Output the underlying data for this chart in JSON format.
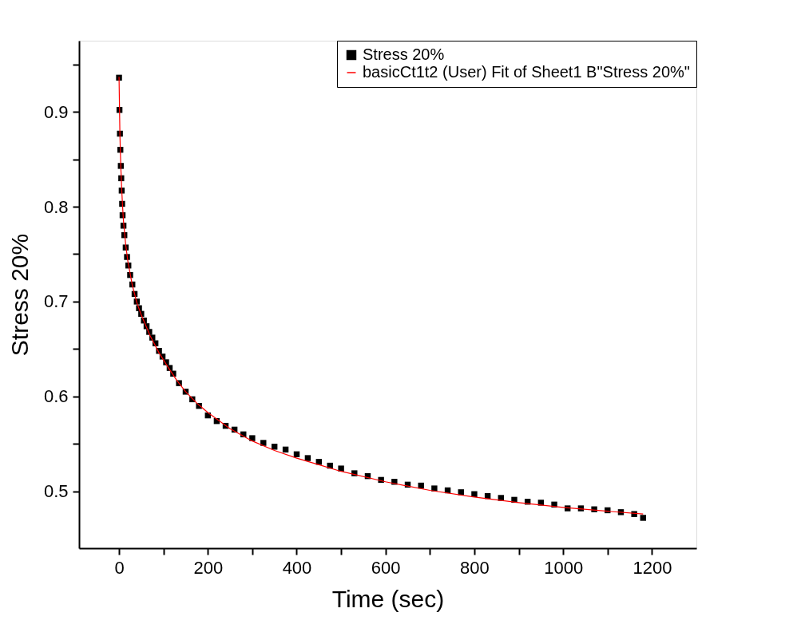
{
  "chart_data": {
    "type": "scatter",
    "xlabel": "Time (sec)",
    "ylabel": "Stress 20%",
    "xlim": [
      -90,
      1300
    ],
    "ylim": [
      0.44,
      0.975
    ],
    "xticks": [
      0,
      {
        "value": 100,
        "label": null
      },
      200,
      {
        "value": 300,
        "label": null
      },
      400,
      {
        "value": 500,
        "label": null
      },
      600,
      {
        "value": 700,
        "label": null
      },
      800,
      {
        "value": 900,
        "label": null
      },
      1000,
      {
        "value": 1100,
        "label": null
      },
      1200
    ],
    "yticks": [
      0.5,
      {
        "value": 0.55,
        "label": null
      },
      0.6,
      {
        "value": 0.65,
        "label": null
      },
      0.7,
      {
        "value": 0.75,
        "label": null
      },
      0.8,
      {
        "value": 0.85,
        "label": null
      },
      0.9,
      {
        "value": 0.95,
        "label": null
      }
    ],
    "grid": false,
    "legend": "top right",
    "series": [
      {
        "name": "Stress 20%",
        "color": "#000000",
        "marker": "square",
        "x": [
          0,
          1,
          2,
          3,
          4,
          5,
          6,
          7,
          8,
          10,
          12,
          15,
          18,
          21,
          25,
          30,
          35,
          40,
          45,
          50,
          56,
          62,
          68,
          75,
          82,
          90,
          98,
          106,
          114,
          122,
          135,
          150,
          165,
          180,
          200,
          220,
          240,
          260,
          280,
          300,
          325,
          350,
          375,
          400,
          425,
          450,
          475,
          500,
          530,
          560,
          590,
          620,
          650,
          680,
          710,
          740,
          770,
          800,
          830,
          860,
          890,
          920,
          950,
          980,
          1010,
          1040,
          1070,
          1100,
          1130,
          1160,
          1180
        ],
        "values": [
          0.936,
          0.902,
          0.877,
          0.86,
          0.843,
          0.83,
          0.817,
          0.803,
          0.791,
          0.78,
          0.77,
          0.757,
          0.747,
          0.738,
          0.728,
          0.718,
          0.708,
          0.7,
          0.693,
          0.687,
          0.68,
          0.674,
          0.668,
          0.662,
          0.656,
          0.648,
          0.642,
          0.636,
          0.63,
          0.624,
          0.614,
          0.605,
          0.597,
          0.59,
          0.58,
          0.574,
          0.569,
          0.565,
          0.56,
          0.556,
          0.551,
          0.547,
          0.544,
          0.539,
          0.535,
          0.531,
          0.527,
          0.524,
          0.519,
          0.516,
          0.512,
          0.51,
          0.507,
          0.506,
          0.503,
          0.501,
          0.499,
          0.497,
          0.495,
          0.493,
          0.491,
          0.489,
          0.488,
          0.486,
          0.482,
          0.482,
          0.481,
          0.48,
          0.478,
          0.476,
          0.472
        ]
      },
      {
        "name": "basicCt1t2 (User) Fit of Sheet1 B\"Stress 20%\"",
        "type": "line",
        "color": "#ff0000",
        "line_style": "solid",
        "marker": "none",
        "x": [
          0,
          2,
          4,
          6,
          8,
          10,
          15,
          20,
          30,
          40,
          50,
          70,
          90,
          110,
          130,
          150,
          175,
          200,
          250,
          300,
          350,
          400,
          450,
          500,
          600,
          700,
          800,
          900,
          1000,
          1100,
          1180
        ],
        "values": [
          0.937,
          0.875,
          0.842,
          0.819,
          0.8,
          0.785,
          0.76,
          0.742,
          0.717,
          0.699,
          0.686,
          0.664,
          0.646,
          0.631,
          0.617,
          0.605,
          0.593,
          0.583,
          0.566,
          0.553,
          0.543,
          0.535,
          0.528,
          0.521,
          0.51,
          0.501,
          0.494,
          0.488,
          0.483,
          0.479,
          0.476
        ]
      }
    ]
  }
}
